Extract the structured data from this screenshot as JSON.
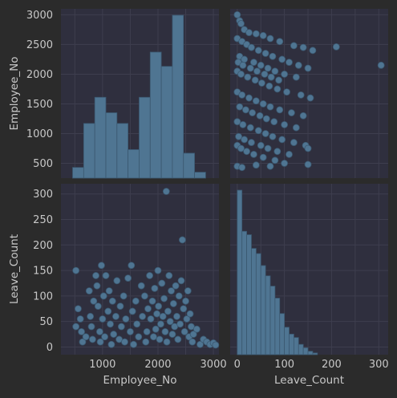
{
  "colors": {
    "figure_bg": "#2b2b2b",
    "panel_bg": "#2f2f3e",
    "grid": "#3e3e4e",
    "mark_fill": "#4f7592",
    "mark_edge": "#3b5870",
    "text": "#c8c8c8"
  },
  "chart_data": {
    "type": "pairplot",
    "variables": [
      "Employee_No",
      "Leave_Count"
    ],
    "grid": true,
    "axes": {
      "Employee_No": {
        "range": [
          250,
          3100
        ],
        "ticks": [
          500,
          1000,
          1500,
          2000,
          2500,
          3000
        ]
      },
      "Leave_Count": {
        "range": [
          -15,
          320
        ],
        "ticks": [
          0,
          50,
          100,
          150,
          200,
          250,
          300
        ]
      }
    },
    "x_tick_labels": {
      "Employee_No": [
        "1000",
        "2000",
        "3000"
      ],
      "Leave_Count": [
        "0",
        "100",
        "200",
        "300"
      ]
    },
    "diagonal": [
      {
        "type": "histogram",
        "variable": "Employee_No",
        "bin_edges": [
          460,
          660,
          860,
          1060,
          1260,
          1460,
          1660,
          1860,
          2060,
          2260,
          2460,
          2660,
          2860,
          3060
        ],
        "counts": [
          9,
          46,
          68,
          55,
          46,
          24,
          68,
          106,
          94,
          137,
          21,
          5,
          0
        ]
      },
      {
        "type": "histogram",
        "variable": "Leave_Count",
        "bin_edges": [
          0,
          10,
          20,
          30,
          40,
          50,
          60,
          70,
          80,
          90,
          100,
          110,
          120,
          130,
          140,
          150,
          160,
          170,
          180,
          190,
          200,
          210,
          220,
          230,
          240,
          250,
          260,
          270,
          280,
          290,
          300,
          310
        ],
        "counts": [
          96,
          72,
          70,
          62,
          59,
          52,
          46,
          40,
          33,
          24,
          16,
          12,
          10,
          6,
          4,
          2,
          1,
          0,
          0,
          0,
          0,
          0,
          0,
          0,
          0,
          0,
          0,
          0,
          0,
          0,
          0
        ]
      }
    ],
    "scatter": {
      "x_variable": "Employee_No",
      "y_variable": "Leave_Count",
      "points": [
        [
          520,
          150
        ],
        [
          560,
          75
        ],
        [
          600,
          55
        ],
        [
          620,
          30
        ],
        [
          640,
          10
        ],
        [
          520,
          40
        ],
        [
          700,
          20
        ],
        [
          760,
          110
        ],
        [
          780,
          60
        ],
        [
          800,
          40
        ],
        [
          820,
          15
        ],
        [
          840,
          90
        ],
        [
          880,
          140
        ],
        [
          900,
          120
        ],
        [
          920,
          80
        ],
        [
          950,
          30
        ],
        [
          960,
          10
        ],
        [
          980,
          160
        ],
        [
          1000,
          55
        ],
        [
          1020,
          100
        ],
        [
          1040,
          20
        ],
        [
          1060,
          140
        ],
        [
          1100,
          70
        ],
        [
          1120,
          110
        ],
        [
          1140,
          45
        ],
        [
          1160,
          5
        ],
        [
          1180,
          90
        ],
        [
          1200,
          25
        ],
        [
          1240,
          60
        ],
        [
          1260,
          130
        ],
        [
          1300,
          15
        ],
        [
          1320,
          80
        ],
        [
          1340,
          40
        ],
        [
          1380,
          100
        ],
        [
          1400,
          10
        ],
        [
          1420,
          55
        ],
        [
          1460,
          135
        ],
        [
          1500,
          30
        ],
        [
          1520,
          160
        ],
        [
          1540,
          70
        ],
        [
          1560,
          5
        ],
        [
          1600,
          90
        ],
        [
          1620,
          45
        ],
        [
          1650,
          20
        ],
        [
          1700,
          120
        ],
        [
          1720,
          60
        ],
        [
          1760,
          100
        ],
        [
          1780,
          10
        ],
        [
          1800,
          30
        ],
        [
          1820,
          75
        ],
        [
          1850,
          140
        ],
        [
          1870,
          55
        ],
        [
          1900,
          90
        ],
        [
          1920,
          20
        ],
        [
          1940,
          115
        ],
        [
          1960,
          35
        ],
        [
          1980,
          65
        ],
        [
          2000,
          150
        ],
        [
          2010,
          80
        ],
        [
          2030,
          15
        ],
        [
          2050,
          45
        ],
        [
          2070,
          125
        ],
        [
          2090,
          60
        ],
        [
          2110,
          95
        ],
        [
          2130,
          30
        ],
        [
          2150,
          305
        ],
        [
          2160,
          10
        ],
        [
          2180,
          70
        ],
        [
          2200,
          140
        ],
        [
          2220,
          50
        ],
        [
          2240,
          110
        ],
        [
          2260,
          25
        ],
        [
          2280,
          85
        ],
        [
          2300,
          40
        ],
        [
          2320,
          120
        ],
        [
          2340,
          60
        ],
        [
          2360,
          15
        ],
        [
          2380,
          100
        ],
        [
          2400,
          45
        ],
        [
          2420,
          130
        ],
        [
          2440,
          210
        ],
        [
          2460,
          75
        ],
        [
          2480,
          30
        ],
        [
          2500,
          90
        ],
        [
          2520,
          55
        ],
        [
          2540,
          110
        ],
        [
          2560,
          20
        ],
        [
          2580,
          65
        ],
        [
          2600,
          40
        ],
        [
          2620,
          10
        ],
        [
          2640,
          25
        ],
        [
          2700,
          35
        ],
        [
          2760,
          5
        ],
        [
          2820,
          15
        ],
        [
          2880,
          10
        ],
        [
          2940,
          5
        ],
        [
          3000,
          8
        ],
        [
          3040,
          4
        ]
      ]
    },
    "scatter_transposed": {
      "x_variable": "Leave_Count",
      "y_variable": "Employee_No",
      "points": [
        [
          0,
          3000
        ],
        [
          5,
          2900
        ],
        [
          8,
          2850
        ],
        [
          15,
          2750
        ],
        [
          25,
          2700
        ],
        [
          40,
          2680
        ],
        [
          55,
          2650
        ],
        [
          70,
          2600
        ],
        [
          90,
          2550
        ],
        [
          120,
          2480
        ],
        [
          140,
          2450
        ],
        [
          160,
          2400
        ],
        [
          210,
          2460
        ],
        [
          305,
          2150
        ],
        [
          0,
          2600
        ],
        [
          10,
          2550
        ],
        [
          20,
          2500
        ],
        [
          30,
          2450
        ],
        [
          45,
          2400
        ],
        [
          60,
          2350
        ],
        [
          75,
          2300
        ],
        [
          95,
          2250
        ],
        [
          110,
          2200
        ],
        [
          130,
          2150
        ],
        [
          150,
          2100
        ],
        [
          5,
          2300
        ],
        [
          15,
          2250
        ],
        [
          35,
          2200
        ],
        [
          50,
          2150
        ],
        [
          65,
          2100
        ],
        [
          80,
          2050
        ],
        [
          100,
          2000
        ],
        [
          125,
          1950
        ],
        [
          2,
          2200
        ],
        [
          12,
          2150
        ],
        [
          28,
          2100
        ],
        [
          42,
          2050
        ],
        [
          58,
          2000
        ],
        [
          72,
          1950
        ],
        [
          88,
          1900
        ],
        [
          0,
          2050
        ],
        [
          8,
          2000
        ],
        [
          22,
          1950
        ],
        [
          38,
          1900
        ],
        [
          52,
          1850
        ],
        [
          68,
          1800
        ],
        [
          85,
          1750
        ],
        [
          105,
          1700
        ],
        [
          135,
          1650
        ],
        [
          155,
          1600
        ],
        [
          0,
          1700
        ],
        [
          10,
          1650
        ],
        [
          25,
          1600
        ],
        [
          40,
          1550
        ],
        [
          55,
          1500
        ],
        [
          70,
          1450
        ],
        [
          90,
          1400
        ],
        [
          115,
          1350
        ],
        [
          140,
          1300
        ],
        [
          5,
          1450
        ],
        [
          18,
          1400
        ],
        [
          32,
          1350
        ],
        [
          48,
          1300
        ],
        [
          62,
          1250
        ],
        [
          78,
          1200
        ],
        [
          100,
          1150
        ],
        [
          125,
          1100
        ],
        [
          0,
          1200
        ],
        [
          12,
          1150
        ],
        [
          28,
          1100
        ],
        [
          45,
          1050
        ],
        [
          60,
          1000
        ],
        [
          75,
          950
        ],
        [
          95,
          900
        ],
        [
          120,
          850
        ],
        [
          145,
          800
        ],
        [
          3,
          950
        ],
        [
          15,
          900
        ],
        [
          30,
          850
        ],
        [
          50,
          800
        ],
        [
          65,
          750
        ],
        [
          85,
          700
        ],
        [
          110,
          650
        ],
        [
          150,
          750
        ],
        [
          0,
          800
        ],
        [
          8,
          750
        ],
        [
          20,
          700
        ],
        [
          35,
          650
        ],
        [
          55,
          600
        ],
        [
          80,
          550
        ],
        [
          100,
          500
        ],
        [
          150,
          480
        ],
        [
          0,
          450
        ],
        [
          10,
          430
        ],
        [
          40,
          470
        ],
        [
          70,
          450
        ]
      ]
    }
  }
}
